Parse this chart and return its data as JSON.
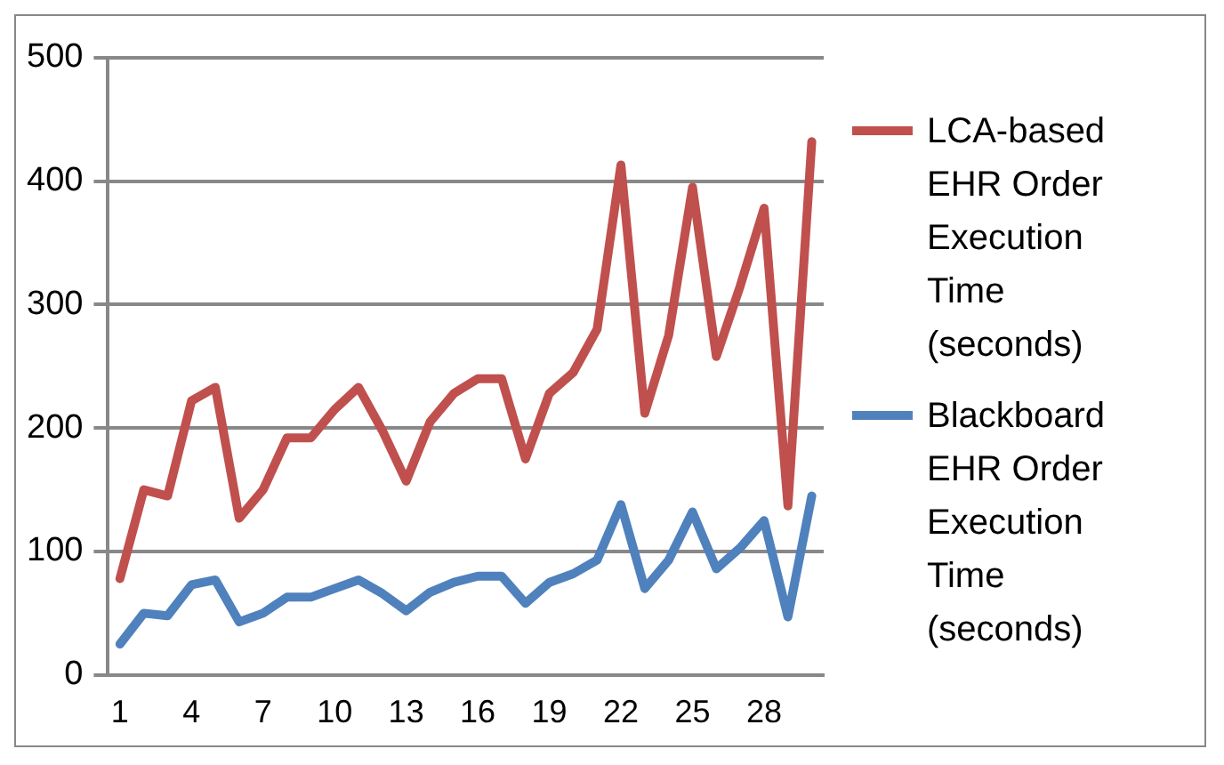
{
  "chart_data": {
    "type": "line",
    "categories": [
      "1",
      null,
      null,
      "4",
      null,
      null,
      "7",
      null,
      null,
      "10",
      null,
      null,
      "13",
      null,
      null,
      "16",
      null,
      null,
      "19",
      null,
      null,
      "22",
      null,
      null,
      "25",
      null,
      null,
      "28",
      null,
      null
    ],
    "series": [
      {
        "name": "LCA-based EHR Order Execution Time (seconds)",
        "color": "#c0504d",
        "values": [
          78,
          150,
          145,
          222,
          233,
          127,
          150,
          192,
          192,
          215,
          233,
          198,
          157,
          205,
          228,
          240,
          240,
          175,
          228,
          245,
          280,
          413,
          212,
          275,
          395,
          258,
          315,
          378,
          137,
          432
        ]
      },
      {
        "name": "Blackboard EHR Order Execution Time (seconds)",
        "color": "#4f81bd",
        "values": [
          25,
          50,
          48,
          73,
          77,
          43,
          50,
          63,
          63,
          70,
          77,
          66,
          52,
          67,
          75,
          80,
          80,
          58,
          75,
          82,
          93,
          138,
          70,
          93,
          132,
          86,
          103,
          125,
          47,
          145
        ]
      }
    ],
    "ylim": [
      0,
      500
    ],
    "yticks": [
      0,
      100,
      200,
      300,
      400,
      500
    ],
    "grid": "y",
    "legend": "right",
    "marker": "none",
    "line_style": "solid"
  }
}
